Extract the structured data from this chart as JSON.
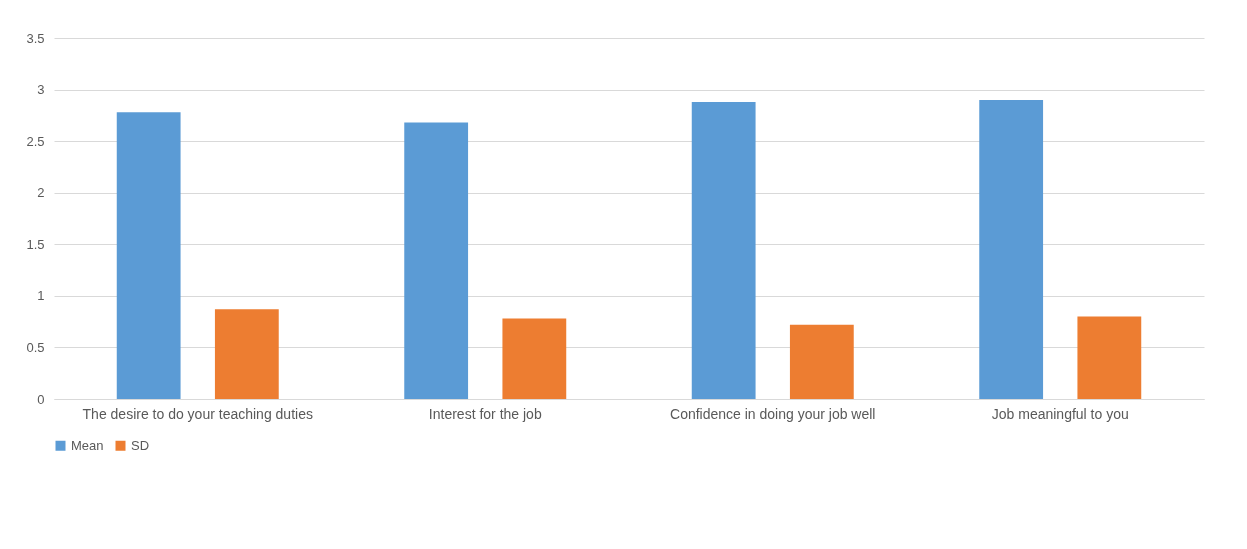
{
  "chart_data": {
    "type": "bar",
    "categories": [
      "The desire to do your teaching duties",
      "Interest for the job",
      "Confidence in doing your job well",
      "Job meaningful to you"
    ],
    "series": [
      {
        "name": "Mean",
        "color": "#5b9bd5",
        "values": [
          2.78,
          2.68,
          2.88,
          2.9
        ]
      },
      {
        "name": "SD",
        "color": "#ed7d31",
        "values": [
          0.87,
          0.78,
          0.72,
          0.8
        ]
      }
    ],
    "ylim": [
      0,
      3.5
    ],
    "yticks": [
      0,
      0.5,
      1,
      1.5,
      2,
      2.5,
      3,
      3.5
    ],
    "grid": "y",
    "legend": "bottom"
  }
}
